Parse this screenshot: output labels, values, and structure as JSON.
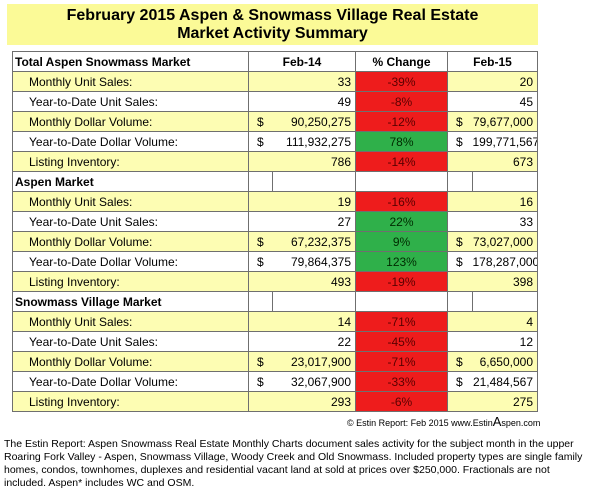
{
  "title": {
    "line1": "February 2015 Aspen & Snowmass Village Real Estate",
    "line2": "Market Activity Summary"
  },
  "table": {
    "header": {
      "market": "Total Aspen Snowmass Market",
      "col1": "Feb-14",
      "col2": "% Change",
      "col3": "Feb-15"
    },
    "sections": [
      {
        "name": "Total Aspen Snowmass Market",
        "rows": [
          {
            "label": "Monthly Unit Sales:",
            "d1": "",
            "v1": "33",
            "pct": "-39%",
            "d2": "",
            "v2": "20"
          },
          {
            "label": "Year-to-Date Unit Sales:",
            "d1": "",
            "v1": "49",
            "pct": "-8%",
            "d2": "",
            "v2": "45"
          },
          {
            "label": "Monthly Dollar Volume:",
            "d1": "$",
            "v1": "90,250,275",
            "pct": "-12%",
            "d2": "$",
            "v2": "79,677,000"
          },
          {
            "label": "Year-to-Date Dollar Volume:",
            "d1": "$",
            "v1": "111,932,275",
            "pct": "78%",
            "d2": "$",
            "v2": "199,771,567"
          },
          {
            "label": "Listing Inventory:",
            "d1": "",
            "v1": "786",
            "pct": "-14%",
            "d2": "",
            "v2": "673"
          }
        ]
      },
      {
        "name": "Aspen Market",
        "rows": [
          {
            "label": "Monthly Unit Sales:",
            "d1": "",
            "v1": "19",
            "pct": "-16%",
            "d2": "",
            "v2": "16"
          },
          {
            "label": "Year-to-Date Unit Sales:",
            "d1": "",
            "v1": "27",
            "pct": "22%",
            "d2": "",
            "v2": "33"
          },
          {
            "label": "Monthly Dollar Volume:",
            "d1": "$",
            "v1": "67,232,375",
            "pct": "9%",
            "d2": "$",
            "v2": "73,027,000"
          },
          {
            "label": "Year-to-Date Dollar Volume:",
            "d1": "$",
            "v1": "79,864,375",
            "pct": "123%",
            "d2": "$",
            "v2": "178,287,000"
          },
          {
            "label": "Listing Inventory:",
            "d1": "",
            "v1": "493",
            "pct": "-19%",
            "d2": "",
            "v2": "398"
          }
        ]
      },
      {
        "name": "Snowmass Village Market",
        "rows": [
          {
            "label": "Monthly Unit Sales:",
            "d1": "",
            "v1": "14",
            "pct": "-71%",
            "d2": "",
            "v2": "4"
          },
          {
            "label": "Year-to-Date Unit Sales:",
            "d1": "",
            "v1": "22",
            "pct": "-45%",
            "d2": "",
            "v2": "12"
          },
          {
            "label": "Monthly Dollar Volume:",
            "d1": "$",
            "v1": "23,017,900",
            "pct": "-71%",
            "d2": "$",
            "v2": "6,650,000"
          },
          {
            "label": "Year-to-Date Dollar Volume:",
            "d1": "$",
            "v1": "32,067,900",
            "pct": "-33%",
            "d2": "$",
            "v2": "21,484,567"
          },
          {
            "label": "Listing Inventory:",
            "d1": "",
            "v1": "293",
            "pct": "-6%",
            "d2": "",
            "v2": "275"
          }
        ]
      }
    ]
  },
  "colors": {
    "title_bg": "#fbfa97",
    "row_highlight": "#fdfdb3",
    "negative": "#ee1c1c",
    "positive": "#2fb04a"
  },
  "credit": {
    "prefix": "© Estin Report: Feb 2015 www.Estin",
    "big_letter": "A",
    "suffix": "spen.com"
  },
  "caption": "The Estin Report: Aspen Snowmass Real Estate Monthly Charts document sales activity for the subject month in the upper Roaring Fork Valley - Aspen, Snowmass Village, Woody Creek and Old Snowmass. Included property types are single family homes, condos, townhomes, duplexes and residential vacant land at sold at prices over $250,000. Fractionals are not included. Aspen* includes WC and OSM."
}
